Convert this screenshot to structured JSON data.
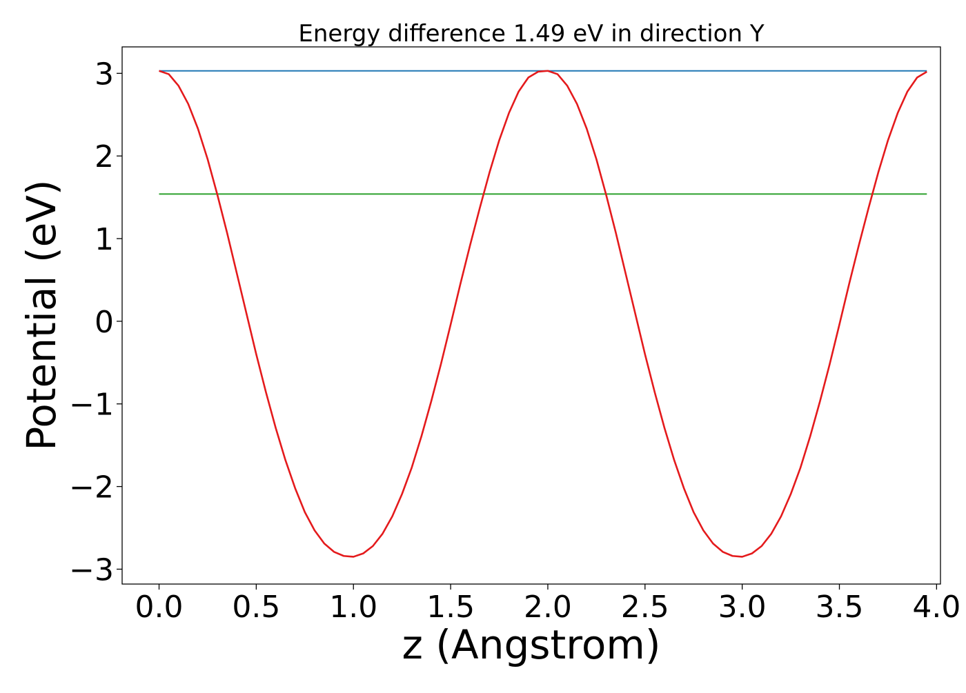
{
  "chart_data": {
    "type": "line",
    "title": "Energy difference 1.49 eV in direction Y",
    "xlabel": "z (Angstrom)",
    "ylabel": "Potential (eV)",
    "xlim": [
      -0.19,
      4.02
    ],
    "ylim": [
      -3.18,
      3.32
    ],
    "x_ticks": [
      0.0,
      0.5,
      1.0,
      1.5,
      2.0,
      2.5,
      3.0,
      3.5,
      4.0
    ],
    "x_tick_labels": [
      "0.0",
      "0.5",
      "1.0",
      "1.5",
      "2.0",
      "2.5",
      "3.0",
      "3.5",
      "4.0"
    ],
    "y_ticks": [
      3,
      2,
      1,
      0,
      -1,
      -2,
      -3
    ],
    "y_tick_labels": [
      "3",
      "2",
      "1",
      "0",
      "−1",
      "−2",
      "−3"
    ],
    "grid": false,
    "legend": "none",
    "series": [
      {
        "color": "#1f77b4",
        "x": [
          0.0,
          3.95
        ],
        "y": [
          3.03,
          3.03
        ]
      },
      {
        "color": "#2ca02c",
        "x": [
          0.0,
          3.95
        ],
        "y": [
          1.54,
          1.54
        ]
      },
      {
        "color": "#e41a1c",
        "x": [
          0.0,
          0.05,
          0.1,
          0.15,
          0.2,
          0.25,
          0.3,
          0.35,
          0.4,
          0.45,
          0.5,
          0.55,
          0.6,
          0.65,
          0.7,
          0.75,
          0.8,
          0.85,
          0.9,
          0.95,
          1.0,
          1.05,
          1.1,
          1.15,
          1.2,
          1.25,
          1.3,
          1.35,
          1.4,
          1.45,
          1.5,
          1.55,
          1.6,
          1.65,
          1.7,
          1.75,
          1.8,
          1.85,
          1.9,
          1.95,
          2.0,
          2.05,
          2.1,
          2.15,
          2.2,
          2.25,
          2.3,
          2.35,
          2.4,
          2.45,
          2.5,
          2.55,
          2.6,
          2.65,
          2.7,
          2.75,
          2.8,
          2.85,
          2.9,
          2.95,
          3.0,
          3.05,
          3.1,
          3.15,
          3.2,
          3.25,
          3.3,
          3.35,
          3.4,
          3.45,
          3.5,
          3.55,
          3.6,
          3.65,
          3.7,
          3.75,
          3.8,
          3.85,
          3.9,
          3.95
        ],
        "y": [
          3.03,
          2.99,
          2.85,
          2.63,
          2.33,
          1.96,
          1.53,
          1.07,
          0.58,
          0.09,
          -0.4,
          -0.86,
          -1.29,
          -1.68,
          -2.02,
          -2.31,
          -2.53,
          -2.69,
          -2.79,
          -2.84,
          -2.85,
          -2.81,
          -2.72,
          -2.57,
          -2.36,
          -2.09,
          -1.77,
          -1.39,
          -0.97,
          -0.52,
          -0.04,
          0.45,
          0.92,
          1.37,
          1.8,
          2.19,
          2.52,
          2.78,
          2.95,
          3.02,
          3.03,
          2.99,
          2.85,
          2.63,
          2.33,
          1.96,
          1.53,
          1.07,
          0.58,
          0.09,
          -0.4,
          -0.86,
          -1.29,
          -1.68,
          -2.02,
          -2.31,
          -2.53,
          -2.69,
          -2.79,
          -2.84,
          -2.85,
          -2.81,
          -2.72,
          -2.57,
          -2.36,
          -2.09,
          -1.77,
          -1.39,
          -0.97,
          -0.52,
          -0.04,
          0.45,
          0.92,
          1.37,
          1.8,
          2.19,
          2.52,
          2.78,
          2.95,
          3.02
        ]
      }
    ]
  }
}
